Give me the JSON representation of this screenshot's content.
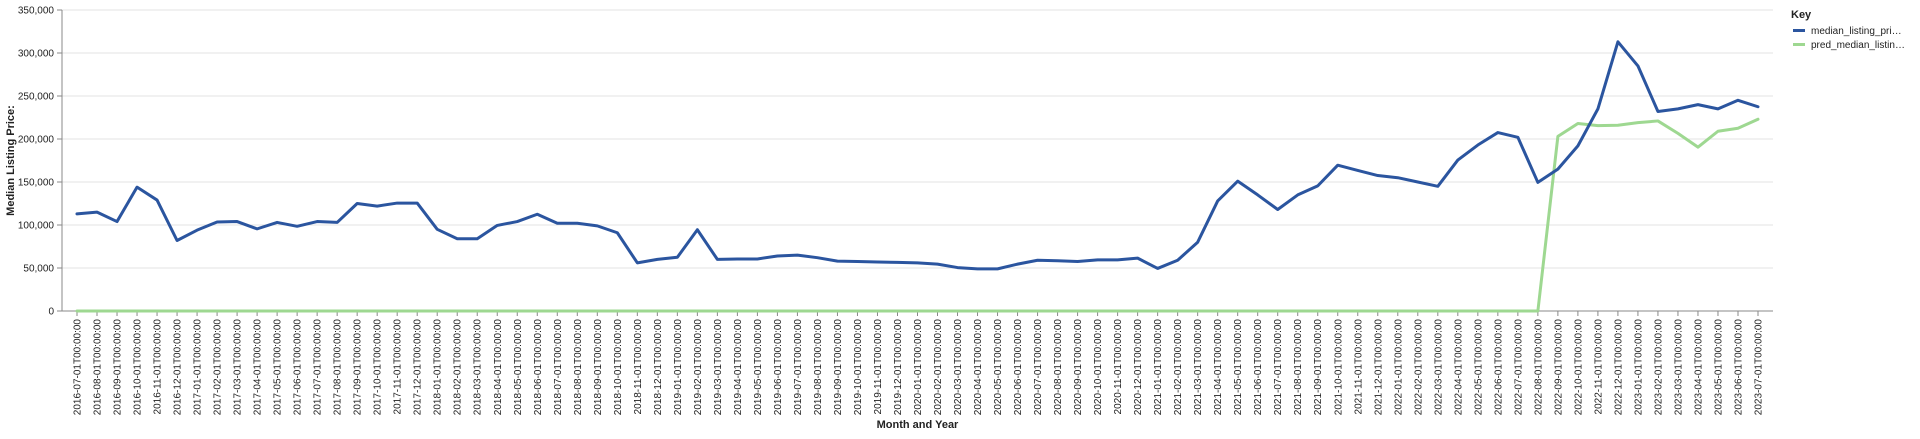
{
  "chart_data": {
    "type": "line",
    "title": "",
    "xlabel": "Month and Year",
    "ylabel": "Median Listing Price:",
    "ylim": [
      0,
      350000
    ],
    "yticks": [
      0,
      50000,
      100000,
      150000,
      200000,
      250000,
      300000,
      350000
    ],
    "ytick_labels": [
      "0",
      "50,000",
      "100,000",
      "150,000",
      "200,000",
      "250,000",
      "300,000",
      "350,000"
    ],
    "grid": "horizontal",
    "legend": {
      "title": "Key",
      "placement": "right",
      "entries": [
        {
          "label": "median_listing_pri…",
          "color": "#2b559f"
        },
        {
          "label": "pred_median_listin…",
          "color": "#9ed891"
        }
      ]
    },
    "x": [
      "2016-07-01T00:00:00",
      "2016-08-01T00:00:00",
      "2016-09-01T00:00:00",
      "2016-10-01T00:00:00",
      "2016-11-01T00:00:00",
      "2016-12-01T00:00:00",
      "2017-01-01T00:00:00",
      "2017-02-01T00:00:00",
      "2017-03-01T00:00:00",
      "2017-04-01T00:00:00",
      "2017-05-01T00:00:00",
      "2017-06-01T00:00:00",
      "2017-07-01T00:00:00",
      "2017-08-01T00:00:00",
      "2017-09-01T00:00:00",
      "2017-10-01T00:00:00",
      "2017-11-01T00:00:00",
      "2017-12-01T00:00:00",
      "2018-01-01T00:00:00",
      "2018-02-01T00:00:00",
      "2018-03-01T00:00:00",
      "2018-04-01T00:00:00",
      "2018-05-01T00:00:00",
      "2018-06-01T00:00:00",
      "2018-07-01T00:00:00",
      "2018-08-01T00:00:00",
      "2018-09-01T00:00:00",
      "2018-10-01T00:00:00",
      "2018-11-01T00:00:00",
      "2018-12-01T00:00:00",
      "2019-01-01T00:00:00",
      "2019-02-01T00:00:00",
      "2019-03-01T00:00:00",
      "2019-04-01T00:00:00",
      "2019-05-01T00:00:00",
      "2019-06-01T00:00:00",
      "2019-07-01T00:00:00",
      "2019-08-01T00:00:00",
      "2019-09-01T00:00:00",
      "2019-10-01T00:00:00",
      "2019-11-01T00:00:00",
      "2019-12-01T00:00:00",
      "2020-01-01T00:00:00",
      "2020-02-01T00:00:00",
      "2020-03-01T00:00:00",
      "2020-04-01T00:00:00",
      "2020-05-01T00:00:00",
      "2020-06-01T00:00:00",
      "2020-07-01T00:00:00",
      "2020-08-01T00:00:00",
      "2020-09-01T00:00:00",
      "2020-10-01T00:00:00",
      "2020-11-01T00:00:00",
      "2020-12-01T00:00:00",
      "2021-01-01T00:00:00",
      "2021-02-01T00:00:00",
      "2021-03-01T00:00:00",
      "2021-04-01T00:00:00",
      "2021-05-01T00:00:00",
      "2021-06-01T00:00:00",
      "2021-07-01T00:00:00",
      "2021-08-01T00:00:00",
      "2021-09-01T00:00:00",
      "2021-10-01T00:00:00",
      "2021-11-01T00:00:00",
      "2021-12-01T00:00:00",
      "2022-01-01T00:00:00",
      "2022-02-01T00:00:00",
      "2022-03-01T00:00:00",
      "2022-04-01T00:00:00",
      "2022-05-01T00:00:00",
      "2022-06-01T00:00:00",
      "2022-07-01T00:00:00",
      "2022-08-01T00:00:00",
      "2022-09-01T00:00:00",
      "2022-10-01T00:00:00",
      "2022-11-01T00:00:00",
      "2022-12-01T00:00:00",
      "2023-01-01T00:00:00",
      "2023-02-01T00:00:00",
      "2023-03-01T00:00:00",
      "2023-04-01T00:00:00",
      "2023-05-01T00:00:00",
      "2023-06-01T00:00:00",
      "2023-07-01T00:00:00"
    ],
    "series": [
      {
        "name": "median_listing_pri…",
        "color": "#2b559f",
        "values": [
          113000,
          115000,
          104000,
          144000,
          129000,
          82000,
          94000,
          103500,
          104000,
          95500,
          103000,
          98500,
          104000,
          103000,
          125000,
          122000,
          125500,
          125500,
          95000,
          84000,
          84000,
          99500,
          104000,
          112500,
          102000,
          102000,
          99000,
          91000,
          56000,
          60000,
          62500,
          94500,
          60000,
          60500,
          60500,
          64000,
          65000,
          62000,
          58000,
          57500,
          57000,
          56500,
          56000,
          54500,
          50500,
          49000,
          49000,
          54500,
          59000,
          58500,
          57500,
          59500,
          59500,
          61500,
          49500,
          59000,
          80000,
          128000,
          151000,
          135000,
          118000,
          135000,
          145500,
          169500,
          163500,
          157500,
          155000,
          150000,
          145000,
          175500,
          193000,
          207500,
          202000,
          149500,
          165000,
          192000,
          235000,
          313000,
          285000,
          232000,
          235000,
          240000,
          235000,
          245000,
          237500
        ]
      },
      {
        "name": "pred_median_listin…",
        "color": "#9ed891",
        "values": [
          0,
          0,
          0,
          0,
          0,
          0,
          0,
          0,
          0,
          0,
          0,
          0,
          0,
          0,
          0,
          0,
          0,
          0,
          0,
          0,
          0,
          0,
          0,
          0,
          0,
          0,
          0,
          0,
          0,
          0,
          0,
          0,
          0,
          0,
          0,
          0,
          0,
          0,
          0,
          0,
          0,
          0,
          0,
          0,
          0,
          0,
          0,
          0,
          0,
          0,
          0,
          0,
          0,
          0,
          0,
          0,
          0,
          0,
          0,
          0,
          0,
          0,
          0,
          0,
          0,
          0,
          0,
          0,
          0,
          0,
          0,
          0,
          0,
          0,
          203000,
          218000,
          215500,
          216000,
          219000,
          221000,
          206500,
          190500,
          209000,
          212500,
          223000
        ]
      }
    ]
  }
}
